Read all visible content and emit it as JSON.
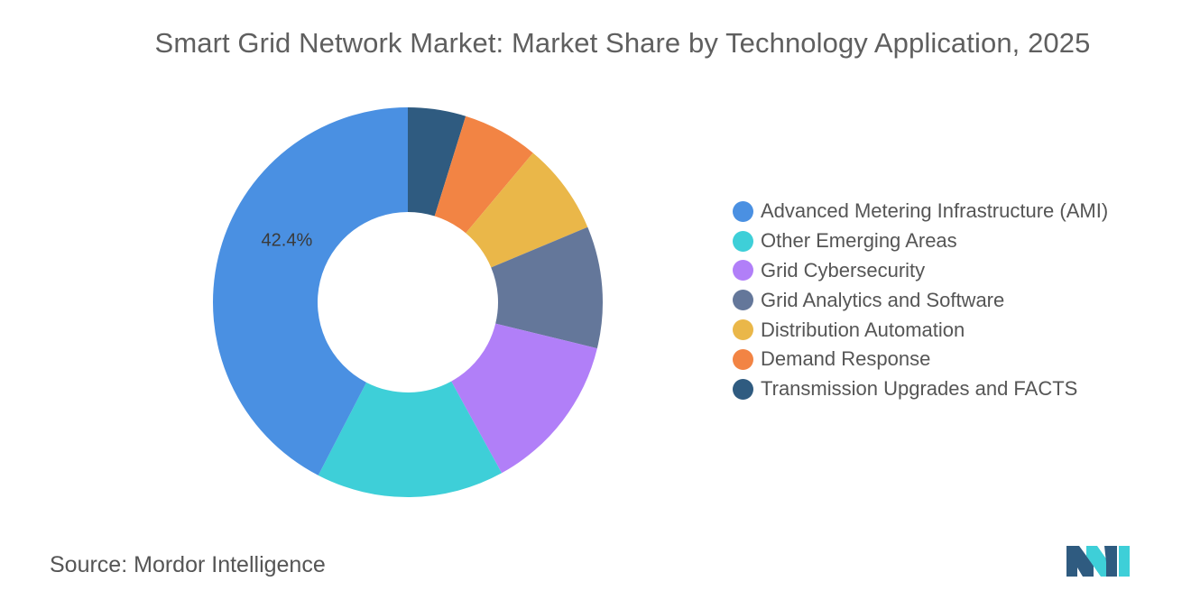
{
  "chart_data": {
    "type": "pie",
    "variant": "donut",
    "title": "Smart Grid Network Market: Market Share by Technology Application, 2025",
    "categories": [
      "Advanced Metering Infrastructure (AMI)",
      "Other Emerging Areas",
      "Grid Cybersecurity",
      "Grid Analytics and Software",
      "Distribution Automation",
      "Demand Response",
      "Transmission Upgrades and FACTS"
    ],
    "values": [
      42.4,
      15.6,
      13.2,
      10.1,
      7.6,
      6.3,
      4.8
    ],
    "colors": [
      "#4a90e2",
      "#3ecfd8",
      "#b17ff8",
      "#64779a",
      "#eab749",
      "#f28444",
      "#2f5b80"
    ],
    "data_labels": [
      {
        "category": "Advanced Metering Infrastructure (AMI)",
        "text": "42.4%"
      }
    ],
    "legend_position": "right"
  },
  "source": {
    "label": "Source:",
    "value": "Mordor Intelligence"
  },
  "logo": {
    "name": "mordor-intelligence-logo",
    "colors": [
      "#2f5b80",
      "#3ecfd8"
    ]
  }
}
